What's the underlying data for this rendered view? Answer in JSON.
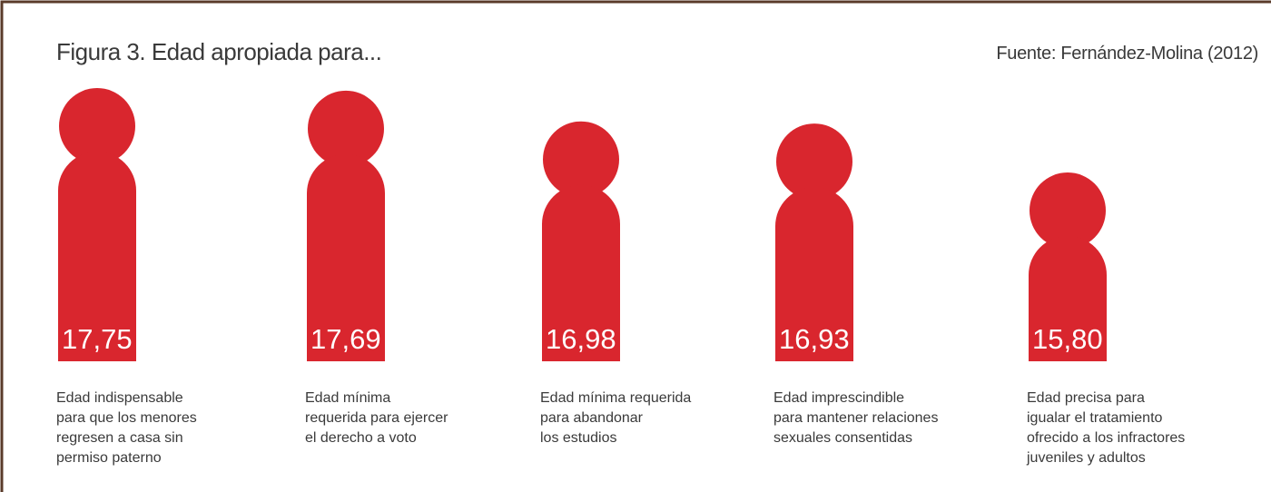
{
  "chart_data": {
    "type": "pictogram",
    "title": "Figura 3. Edad apropiada para...",
    "source": "Fuente: Fernández-Molina (2012)",
    "color": "#d9262e",
    "categories": [
      "Edad indispensable\npara que los menores\nregresen a casa sin\npermiso paterno",
      "Edad mínima\nrequerida para ejercer\nel derecho a voto",
      "Edad mínima requerida\npara abandonar\nlos estudios",
      "Edad imprescindible\npara mantener relaciones\nsexuales consentidas",
      "Edad precisa para\nigualar el tratamiento\nofrecido a los infractores\njuveniles y adultos"
    ],
    "values": [
      17.75,
      17.69,
      16.98,
      16.93,
      15.8
    ],
    "value_labels": [
      "17,75",
      "17,69",
      "16,98",
      "16,93",
      "15,80"
    ]
  }
}
